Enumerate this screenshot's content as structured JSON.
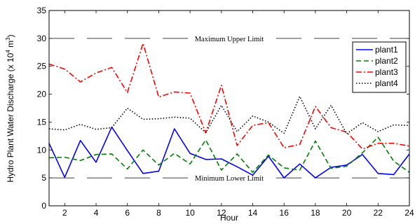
{
  "chart_data": {
    "type": "line",
    "xlabel": "Hour",
    "ylabel_main": "Hydro Plant Water Discharge (x 10",
    "ylabel_sup1": "4",
    "ylabel_mid": " m",
    "ylabel_sup2": "3",
    "ylabel_end": ")",
    "xlim": [
      1,
      24
    ],
    "ylim": [
      0,
      35
    ],
    "xticks": [
      2,
      4,
      6,
      8,
      10,
      12,
      14,
      16,
      18,
      20,
      22,
      24
    ],
    "yticks": [
      0,
      5,
      10,
      15,
      20,
      25,
      30,
      35
    ],
    "grid": false,
    "legend_position": "top-right",
    "x": [
      1,
      2,
      3,
      4,
      5,
      6,
      7,
      8,
      9,
      10,
      11,
      12,
      13,
      14,
      15,
      16,
      17,
      18,
      19,
      20,
      21,
      22,
      23,
      24
    ],
    "series": [
      {
        "name": "plant1",
        "color": "#0000ff",
        "dash": "solid",
        "values": [
          11.2,
          5.1,
          11.7,
          7.8,
          14.1,
          9.9,
          5.8,
          6.2,
          13.8,
          9.4,
          8.3,
          8.4,
          7.0,
          5.5,
          8.9,
          5.0,
          7.5,
          5.0,
          6.9,
          7.3,
          9.2,
          5.8,
          5.6,
          9.3
        ]
      },
      {
        "name": "plant2",
        "color": "#008000",
        "dash": "dashed",
        "values": [
          8.6,
          8.7,
          8.1,
          9.2,
          9.3,
          6.6,
          10.0,
          7.3,
          9.4,
          7.5,
          11.8,
          6.4,
          9.3,
          6.0,
          9.1,
          6.8,
          6.4,
          11.6,
          6.7,
          7.1,
          9.5,
          12.3,
          8.0,
          6.0
        ]
      },
      {
        "name": "plant3",
        "color": "#ff0000",
        "dash": "dashdot",
        "values": [
          25.4,
          24.5,
          22.2,
          23.8,
          24.8,
          20.3,
          29.1,
          19.5,
          20.4,
          20.2,
          13.1,
          21.6,
          10.8,
          14.4,
          14.9,
          10.4,
          11.0,
          17.8,
          14.0,
          13.2,
          10.2,
          11.2,
          11.2,
          10.7
        ]
      },
      {
        "name": "plant4",
        "color": "#000000",
        "dash": "dotted",
        "values": [
          13.8,
          13.6,
          14.6,
          13.7,
          14.0,
          17.5,
          15.5,
          15.6,
          15.9,
          15.7,
          13.1,
          18.0,
          13.3,
          16.1,
          15.0,
          13.0,
          19.6,
          13.8,
          18.0,
          12.9,
          14.9,
          13.3,
          14.5,
          14.4
        ]
      }
    ],
    "limits": [
      {
        "label": "Maximum Upper Limit",
        "value": 30
      },
      {
        "label": "Minimum Lower Limit",
        "value": 5
      }
    ]
  }
}
